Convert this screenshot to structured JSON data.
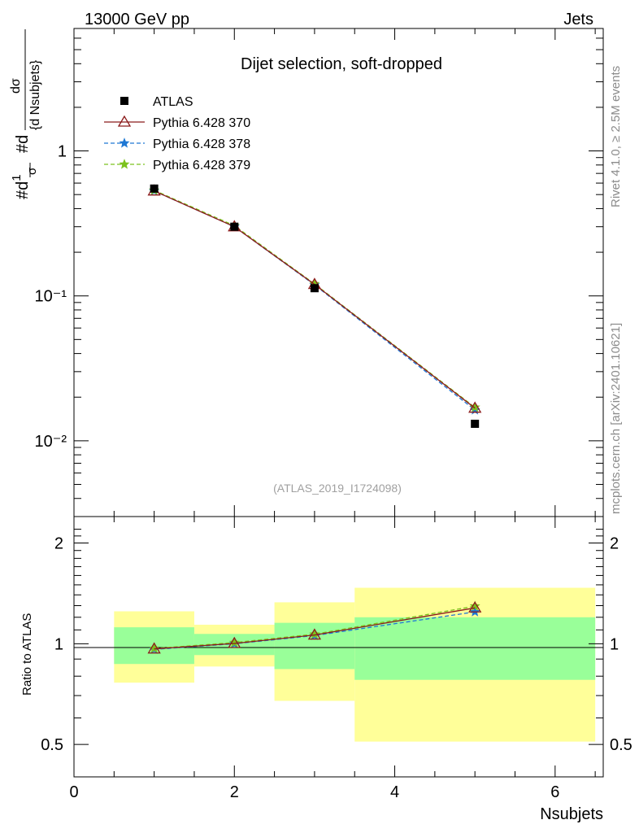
{
  "header": {
    "energy_label": "13000 GeV pp",
    "category_label": "Jets"
  },
  "side_labels": {
    "rivet": "Rivet 4.1.0, ≥ 2.5M events",
    "mcplots": "mcplots.cern.ch [arXiv:2401.10621]"
  },
  "chart_data": {
    "type": "line",
    "title": "Dijet selection, soft-dropped",
    "analysis_id": "(ATLAS_2019_I1724098)",
    "xlabel": "Nsubjets",
    "ylabel_main": "#d¹/σ #d dσ/{d Nsubjets}",
    "ylabel_ratio": "Ratio to ATLAS",
    "xlim": [
      0,
      6.6
    ],
    "ylim_main": [
      0.003,
      7
    ],
    "ylim_ratio": [
      0.4,
      2.4
    ],
    "log_y_main": true,
    "x_ticks": [
      "0",
      "2",
      "4",
      "6"
    ],
    "y_ticks_main": [
      "1",
      "10⁻¹",
      "10⁻²"
    ],
    "y_ticks_ratio": [
      "2",
      "1",
      "0.5"
    ],
    "legend_position": "top-left",
    "bins": [
      [
        0.5,
        1.5
      ],
      [
        1.5,
        2.5
      ],
      [
        2.5,
        3.5
      ],
      [
        3.5,
        6.5
      ]
    ],
    "data": {
      "name": "ATLAS",
      "x": [
        1,
        2,
        3,
        5
      ],
      "y": [
        0.55,
        0.3,
        0.113,
        0.0131
      ]
    },
    "series": [
      {
        "name": "Pythia 6.428 370",
        "color": "#8b1a1a",
        "style": "solid",
        "marker": "triangle",
        "x": [
          1,
          2,
          3,
          5
        ],
        "y": [
          0.53,
          0.3,
          0.12,
          0.0168
        ],
        "ratio": [
          0.965,
          1.002,
          1.062,
          1.28
        ]
      },
      {
        "name": "Pythia 6.428 378",
        "color": "#1f78d4",
        "style": "dashed",
        "marker": "star",
        "x": [
          1,
          2,
          3,
          5
        ],
        "y": [
          0.53,
          0.3,
          0.119,
          0.0163
        ],
        "ratio": [
          0.962,
          1.0,
          1.058,
          1.245
        ]
      },
      {
        "name": "Pythia 6.428 379",
        "color": "#7cc21d",
        "style": "dashed",
        "marker": "star",
        "x": [
          1,
          2,
          3,
          5
        ],
        "y": [
          0.535,
          0.305,
          0.121,
          0.017
        ],
        "ratio": [
          0.968,
          1.008,
          1.068,
          1.295
        ]
      }
    ],
    "ratio_bands": {
      "inner": [
        [
          0.87,
          1.12
        ],
        [
          0.925,
          1.07
        ],
        [
          0.84,
          1.155
        ],
        [
          0.78,
          1.2
        ]
      ],
      "outer": [
        [
          0.765,
          1.25
        ],
        [
          0.855,
          1.14
        ],
        [
          0.675,
          1.33
        ],
        [
          0.51,
          1.47
        ]
      ]
    }
  }
}
